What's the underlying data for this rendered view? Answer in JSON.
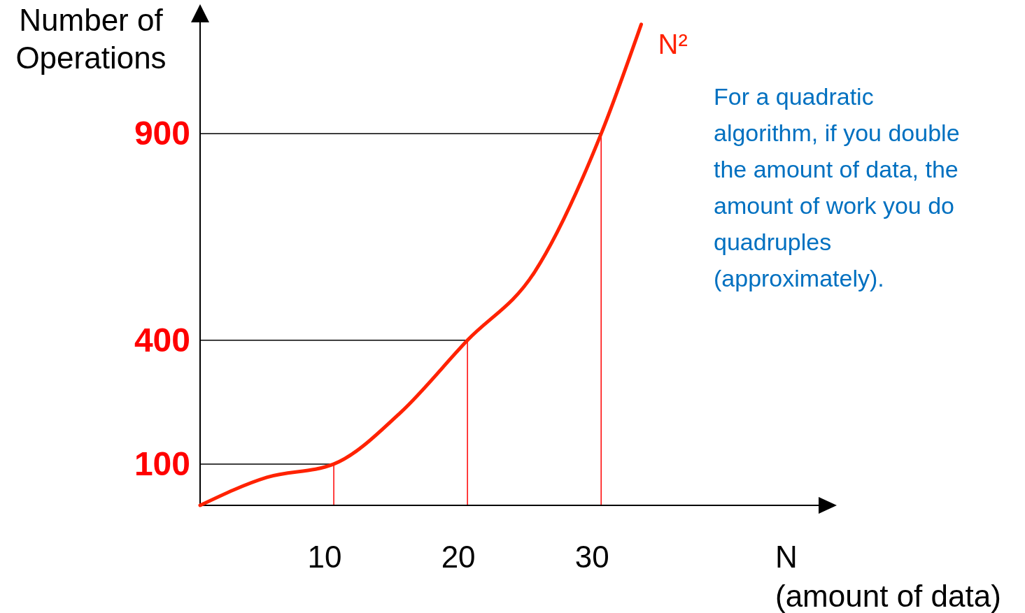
{
  "chart_data": {
    "type": "line",
    "xlabel": "N\n(amount of data)",
    "ylabel": "Number of\nOperations",
    "xlim": [
      0,
      47
    ],
    "ylim": [
      0,
      1190
    ],
    "xticks": [
      10,
      20,
      30
    ],
    "yticks": [
      100,
      400,
      900
    ],
    "x": [
      0,
      5,
      10,
      15,
      20,
      25,
      30,
      33
    ],
    "series": [
      {
        "name": "N²",
        "color": "#ff2200",
        "values": [
          0,
          68,
          100,
          225,
          400,
          564,
          900,
          1165
        ]
      }
    ],
    "ref_lines": [
      {
        "axis": "y",
        "value": 100,
        "color": "#000000"
      },
      {
        "axis": "y",
        "value": 400,
        "color": "#000000"
      },
      {
        "axis": "y",
        "value": 900,
        "color": "#000000"
      },
      {
        "axis": "x",
        "value": 10,
        "color": "#ff0000"
      },
      {
        "axis": "x",
        "value": 20,
        "color": "#ff0000"
      },
      {
        "axis": "x",
        "value": 30,
        "color": "#ff0000"
      }
    ],
    "annotations": [
      "For a quadratic algorithm, if you double the amount of data, the amount of work you do quadruples (approximately)."
    ],
    "grid": false
  }
}
